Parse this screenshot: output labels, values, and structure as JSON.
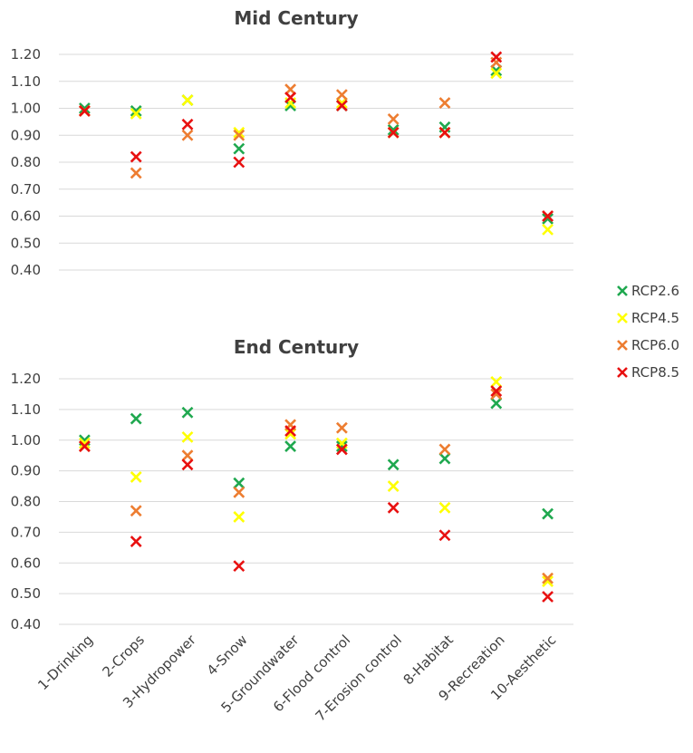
{
  "chart_data": {
    "type": "scatter",
    "marker": "x",
    "categories": [
      "1-Drinking",
      "2-Crops",
      "3-Hydropower",
      "4-Snow",
      "5-Groundwater",
      "6-Flood control",
      "7-Erosion control",
      "8-Habitat",
      "9-Recreation",
      "10-Aesthetic"
    ],
    "ylim": [
      0.4,
      1.2
    ],
    "yticks": [
      "0.40",
      "0.50",
      "0.60",
      "0.70",
      "0.80",
      "0.90",
      "1.00",
      "1.10",
      "1.20"
    ],
    "grid": true,
    "legend": {
      "position": "right",
      "entries": [
        {
          "name": "RCP2.6",
          "color": "#1fa84f"
        },
        {
          "name": "RCP4.5",
          "color": "#ffff00"
        },
        {
          "name": "RCP6.0",
          "color": "#ed7d31"
        },
        {
          "name": "RCP8.5",
          "color": "#e81010"
        }
      ]
    },
    "panels": [
      {
        "title": "Mid Century",
        "series": [
          {
            "name": "RCP2.6",
            "values": [
              1.0,
              0.99,
              1.03,
              0.85,
              1.01,
              1.01,
              0.92,
              0.93,
              1.14,
              0.59
            ]
          },
          {
            "name": "RCP4.5",
            "values": [
              0.99,
              0.98,
              1.03,
              0.91,
              1.02,
              1.02,
              0.91,
              0.91,
              1.13,
              0.55
            ]
          },
          {
            "name": "RCP6.0",
            "values": [
              0.99,
              0.76,
              0.9,
              0.9,
              1.07,
              1.05,
              0.96,
              1.02,
              1.17,
              0.6
            ]
          },
          {
            "name": "RCP8.5",
            "values": [
              0.99,
              0.82,
              0.94,
              0.8,
              1.04,
              1.01,
              0.91,
              0.91,
              1.19,
              0.6
            ]
          }
        ]
      },
      {
        "title": "End Century",
        "series": [
          {
            "name": "RCP2.6",
            "values": [
              1.0,
              1.07,
              1.09,
              0.86,
              0.98,
              0.98,
              0.92,
              0.94,
              1.12,
              0.76
            ]
          },
          {
            "name": "RCP4.5",
            "values": [
              0.99,
              0.88,
              1.01,
              0.75,
              1.02,
              0.99,
              0.85,
              0.78,
              1.19,
              0.54
            ]
          },
          {
            "name": "RCP6.0",
            "values": [
              0.98,
              0.77,
              0.95,
              0.83,
              1.05,
              1.04,
              null,
              0.97,
              1.15,
              0.55
            ]
          },
          {
            "name": "RCP8.5",
            "values": [
              0.98,
              0.67,
              0.92,
              0.59,
              1.03,
              0.97,
              0.78,
              0.69,
              1.16,
              0.49
            ]
          }
        ]
      }
    ]
  }
}
